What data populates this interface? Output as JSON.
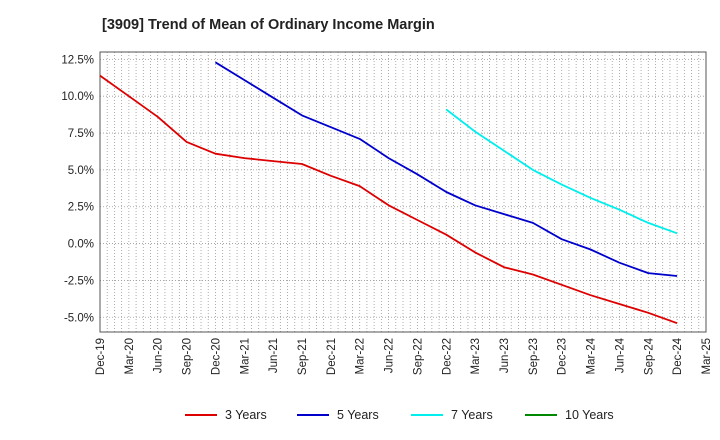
{
  "chart_data": {
    "type": "line",
    "title": "[3909]  Trend of Mean of Ordinary Income Margin",
    "xlabel": "",
    "ylabel": "",
    "x_ticks": [
      "Dec-19",
      "Mar-20",
      "Jun-20",
      "Sep-20",
      "Dec-20",
      "Mar-21",
      "Jun-21",
      "Sep-21",
      "Dec-21",
      "Mar-22",
      "Jun-22",
      "Sep-22",
      "Dec-22",
      "Mar-23",
      "Jun-23",
      "Sep-23",
      "Dec-23",
      "Mar-24",
      "Jun-24",
      "Sep-24",
      "Dec-24",
      "Mar-25"
    ],
    "y_ticks": [
      "12.5%",
      "10.0%",
      "7.5%",
      "5.0%",
      "2.5%",
      "0.0%",
      "-2.5%",
      "-5.0%"
    ],
    "y_tick_values": [
      12.5,
      10.0,
      7.5,
      5.0,
      2.5,
      0.0,
      -2.5,
      -5.0
    ],
    "ylim": [
      -6.0,
      13.0
    ],
    "grid": true,
    "legend_position": "bottom",
    "series": [
      {
        "name": "3 Years",
        "color": "#dd0000",
        "x": [
          "Dec-19",
          "Mar-20",
          "Jun-20",
          "Sep-20",
          "Dec-20",
          "Mar-21",
          "Jun-21",
          "Sep-21",
          "Dec-21",
          "Mar-22",
          "Jun-22",
          "Sep-22",
          "Dec-22",
          "Mar-23",
          "Jun-23",
          "Sep-23",
          "Dec-23",
          "Mar-24",
          "Jun-24",
          "Sep-24",
          "Dec-24"
        ],
        "values": [
          11.4,
          10.0,
          8.6,
          6.9,
          6.1,
          5.8,
          5.6,
          5.4,
          4.6,
          3.9,
          2.6,
          1.6,
          0.6,
          -0.6,
          -1.6,
          -2.1,
          -2.8,
          -3.5,
          -4.1,
          -4.7,
          -5.4
        ]
      },
      {
        "name": "5 Years",
        "color": "#0000cc",
        "x": [
          "Dec-20",
          "Mar-21",
          "Jun-21",
          "Sep-21",
          "Dec-21",
          "Mar-22",
          "Jun-22",
          "Sep-22",
          "Dec-22",
          "Mar-23",
          "Jun-23",
          "Sep-23",
          "Dec-23",
          "Mar-24",
          "Jun-24",
          "Sep-24",
          "Dec-24"
        ],
        "values": [
          12.3,
          11.1,
          9.9,
          8.7,
          7.9,
          7.1,
          5.8,
          4.7,
          3.5,
          2.6,
          2.0,
          1.4,
          0.3,
          -0.4,
          -1.3,
          -2.0,
          -2.2
        ]
      },
      {
        "name": "7 Years",
        "color": "#00eeee",
        "x": [
          "Dec-22",
          "Mar-23",
          "Jun-23",
          "Sep-23",
          "Dec-23",
          "Mar-24",
          "Jun-24",
          "Sep-24",
          "Dec-24"
        ],
        "values": [
          9.1,
          7.6,
          6.3,
          5.0,
          4.0,
          3.1,
          2.3,
          1.4,
          0.7
        ]
      },
      {
        "name": "10 Years",
        "color": "#008800",
        "x": [],
        "values": []
      }
    ]
  }
}
